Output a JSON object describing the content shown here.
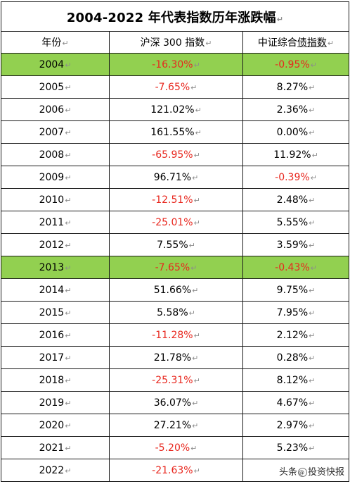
{
  "title": "2004-2022 年代表指数历年涨跌幅",
  "headers": {
    "year": "年份",
    "csi300": "沪深 300 指数",
    "bond_prefix": "中证综合",
    "bond_underlined": "债指数"
  },
  "return_mark": "↵",
  "highlight_color": "#92d050",
  "negative_color": "#e8271e",
  "rows": [
    {
      "year": "2004",
      "csi300": "-16.30%",
      "bond": "-0.95%",
      "highlight": true
    },
    {
      "year": "2005",
      "csi300": "-7.65%",
      "bond": "8.27%"
    },
    {
      "year": "2006",
      "csi300": "121.02%",
      "bond": "2.36%"
    },
    {
      "year": "2007",
      "csi300": "161.55%",
      "bond": "0.00%"
    },
    {
      "year": "2008",
      "csi300": "-65.95%",
      "bond": "11.92%"
    },
    {
      "year": "2009",
      "csi300": "96.71%",
      "bond": "-0.39%"
    },
    {
      "year": "2010",
      "csi300": "-12.51%",
      "bond": "2.48%"
    },
    {
      "year": "2011",
      "csi300": "-25.01%",
      "bond": "5.55%"
    },
    {
      "year": "2012",
      "csi300": "7.55%",
      "bond": "3.59%"
    },
    {
      "year": "2013",
      "csi300": "-7.65%",
      "bond": "-0.43%",
      "highlight": true
    },
    {
      "year": "2014",
      "csi300": "51.66%",
      "bond": "9.75%"
    },
    {
      "year": "2015",
      "csi300": "5.58%",
      "bond": "7.95%"
    },
    {
      "year": "2016",
      "csi300": "-11.28%",
      "bond": "2.12%"
    },
    {
      "year": "2017",
      "csi300": "21.78%",
      "bond": "0.28%"
    },
    {
      "year": "2018",
      "csi300": "-25.31%",
      "bond": "8.12%"
    },
    {
      "year": "2019",
      "csi300": "36.07%",
      "bond": "4.67%"
    },
    {
      "year": "2020",
      "csi300": "27.21%",
      "bond": "2.97%"
    },
    {
      "year": "2021",
      "csi300": "-5.20%",
      "bond": "5.23%"
    },
    {
      "year": "2022",
      "csi300": "-21.63%",
      "bond": ""
    }
  ],
  "watermark": {
    "prefix": "头条",
    "circle": "@",
    "name": "投资快报"
  }
}
